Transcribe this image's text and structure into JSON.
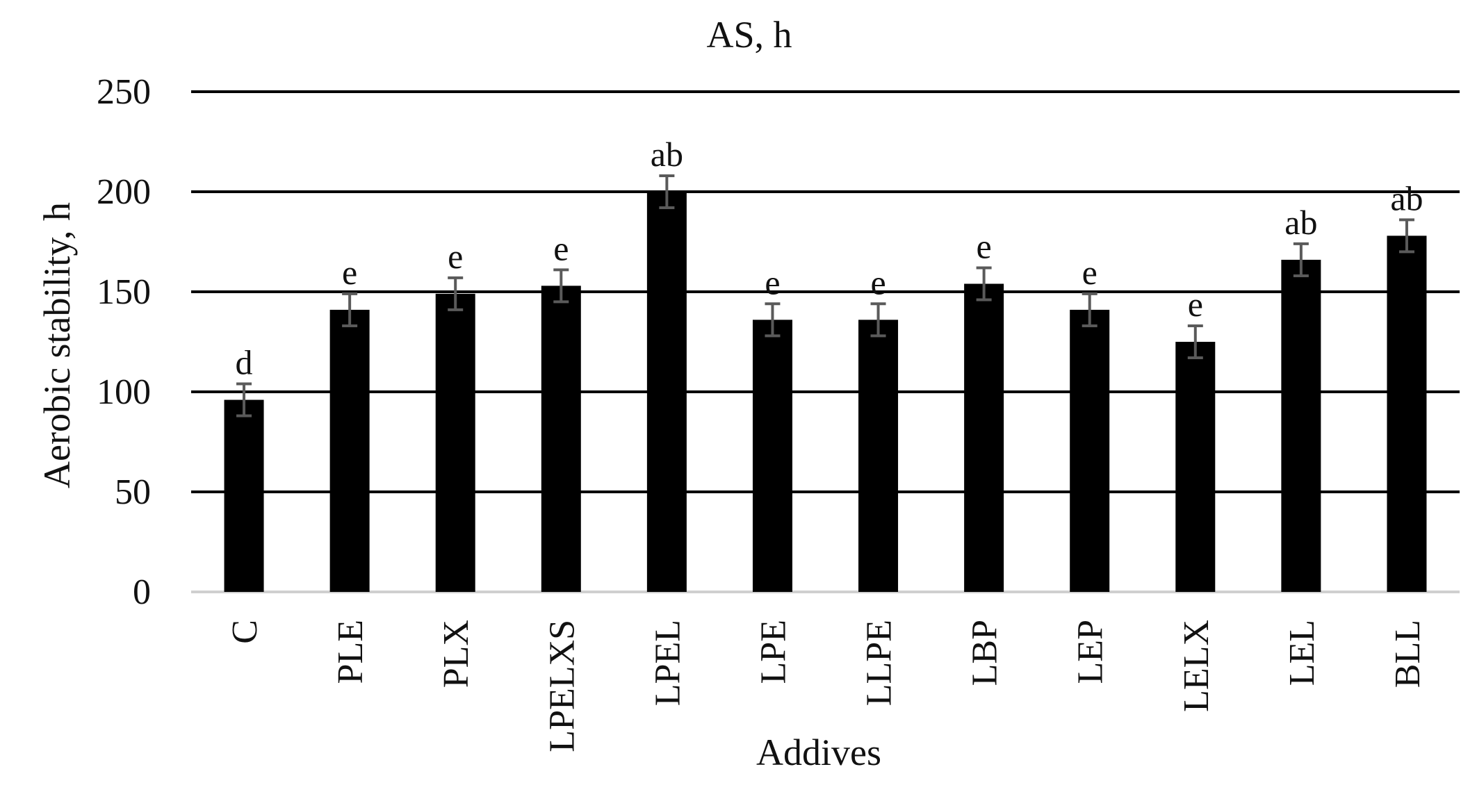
{
  "chart_data": {
    "type": "bar",
    "title": "AS, h",
    "xlabel": "Addives",
    "ylabel": "Aerobic stability, h",
    "ylim": [
      0,
      250
    ],
    "yticks": [
      0,
      50,
      100,
      150,
      200,
      250
    ],
    "grid": true,
    "categories": [
      "C",
      "PLE",
      "PLX",
      "LPELXS",
      "LPEL",
      "LPE",
      "LLPE",
      "LBP",
      "LEP",
      "LELX",
      "LEL",
      "BLL"
    ],
    "values": [
      96,
      141,
      149,
      153,
      200,
      136,
      136,
      154,
      141,
      125,
      166,
      178
    ],
    "errors": [
      8,
      8,
      8,
      8,
      8,
      8,
      8,
      8,
      8,
      8,
      8,
      8
    ],
    "labels": [
      "d",
      "e",
      "e",
      "e",
      "ab",
      "e",
      "e",
      "e",
      "e",
      "e",
      "ab",
      "ab"
    ],
    "colors": {
      "bar": "#000000",
      "gridline": "#000000",
      "baseline": "#cfcfcf",
      "error_bar": "#5a5a5a"
    }
  }
}
